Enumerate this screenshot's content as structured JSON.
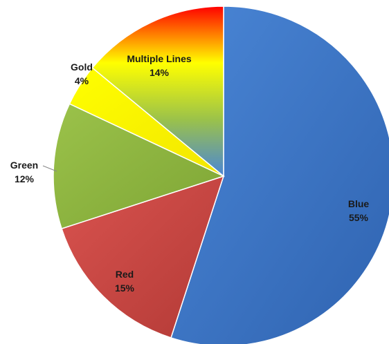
{
  "chart_data": {
    "type": "pie",
    "title": "",
    "start_angle_deg": 0,
    "direction": "clockwise",
    "slices": [
      {
        "name": "Blue",
        "value": 55,
        "label_value": "55%",
        "color": "#4a86d6",
        "color_dark": "#2f63b0"
      },
      {
        "name": "Red",
        "value": 15,
        "label_value": "15%",
        "color": "#d9534f",
        "color_dark": "#b33a36"
      },
      {
        "name": "Green",
        "value": 12,
        "label_value": "12%",
        "color": "#9bc24a",
        "color_dark": "#7ea535"
      },
      {
        "name": "Gold",
        "value": 4,
        "label_value": "4%",
        "color": "#ffff00",
        "color_dark": "#f2e600"
      },
      {
        "name": "Multiple Lines",
        "value": 14,
        "label_value": "14%",
        "colors": [
          "#ff0000",
          "#ffff00",
          "#9bc24a",
          "#4a86d6"
        ]
      }
    ]
  }
}
